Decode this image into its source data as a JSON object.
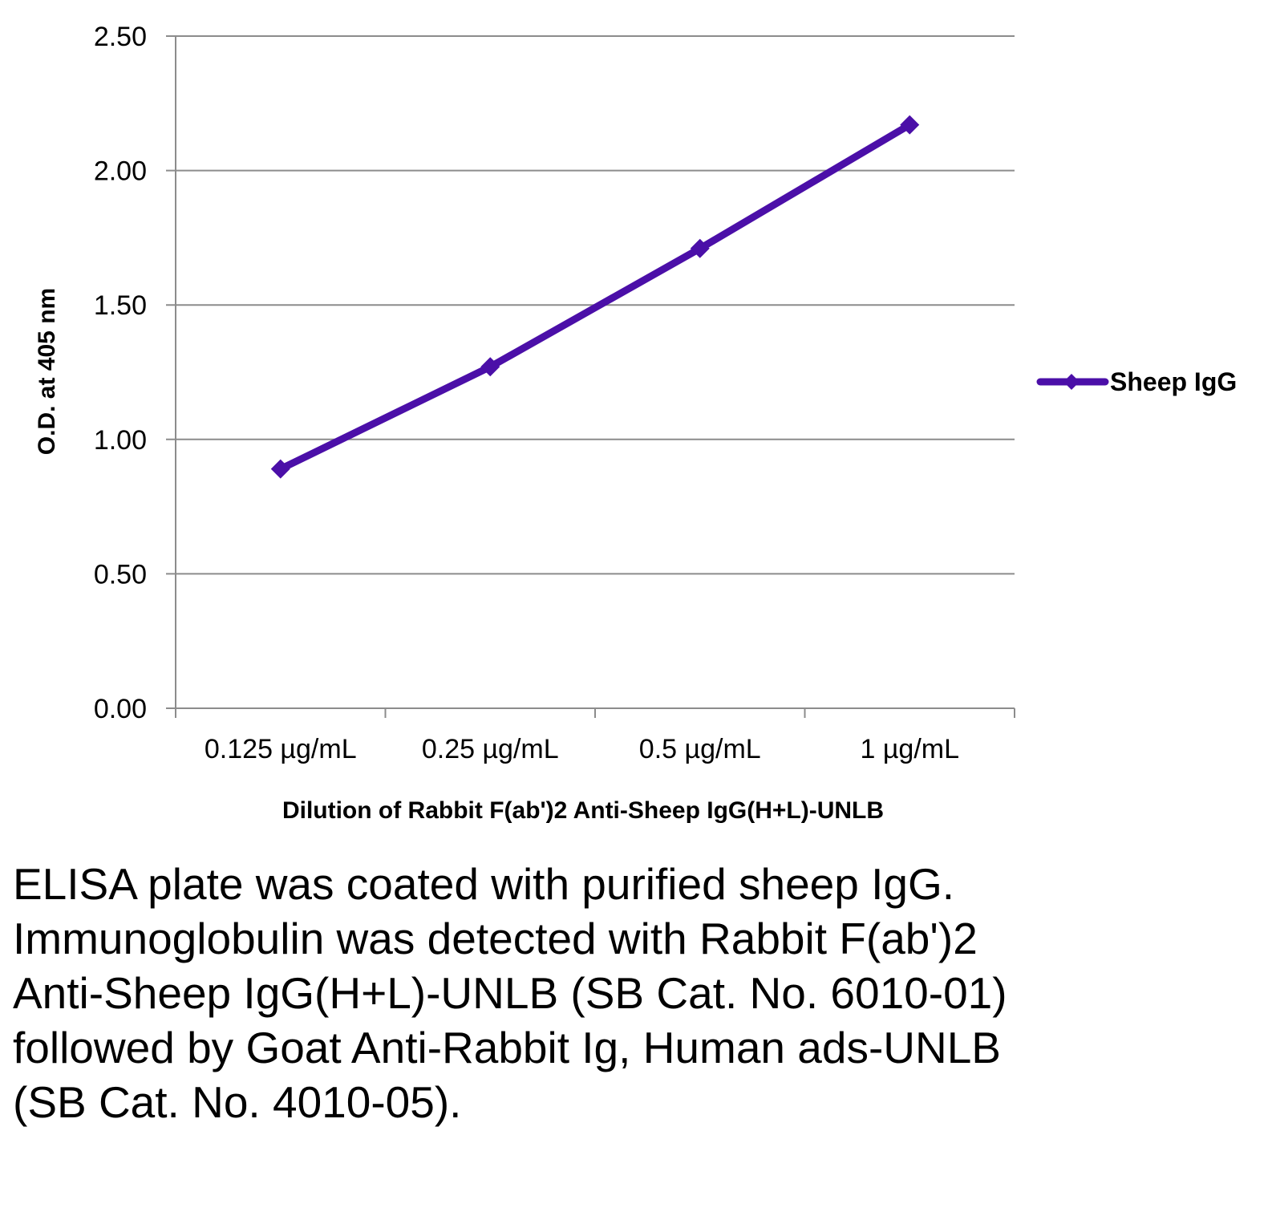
{
  "chart_data": {
    "type": "line",
    "categories": [
      "0.125 µg/mL",
      "0.25 µg/mL",
      "0.5 µg/mL",
      "1 µg/mL"
    ],
    "series": [
      {
        "name": "Sheep IgG",
        "values": [
          0.89,
          1.27,
          1.71,
          2.17
        ],
        "color": "#4B0FA8",
        "marker": "diamond"
      }
    ],
    "ylim": [
      0,
      2.5
    ],
    "yticks": [
      "0.00",
      "0.50",
      "1.00",
      "1.50",
      "2.00",
      "2.50"
    ],
    "ytick_values": [
      0,
      0.5,
      1.0,
      1.5,
      2.0,
      2.5
    ],
    "xlabel": "Dilution of Rabbit F(ab')2 Anti-Sheep IgG(H+L)-UNLB",
    "ylabel": "O.D. at 405 nm",
    "grid": true,
    "legend": "right"
  },
  "caption": "ELISA plate was coated with purified sheep IgG.  Immunoglobulin was detected with Rabbit F(ab')2 Anti-Sheep IgG(H+L)-UNLB (SB Cat. No. 6010-01) followed by Goat Anti-Rabbit Ig, Human ads-UNLB (SB Cat. No. 4010-05)."
}
